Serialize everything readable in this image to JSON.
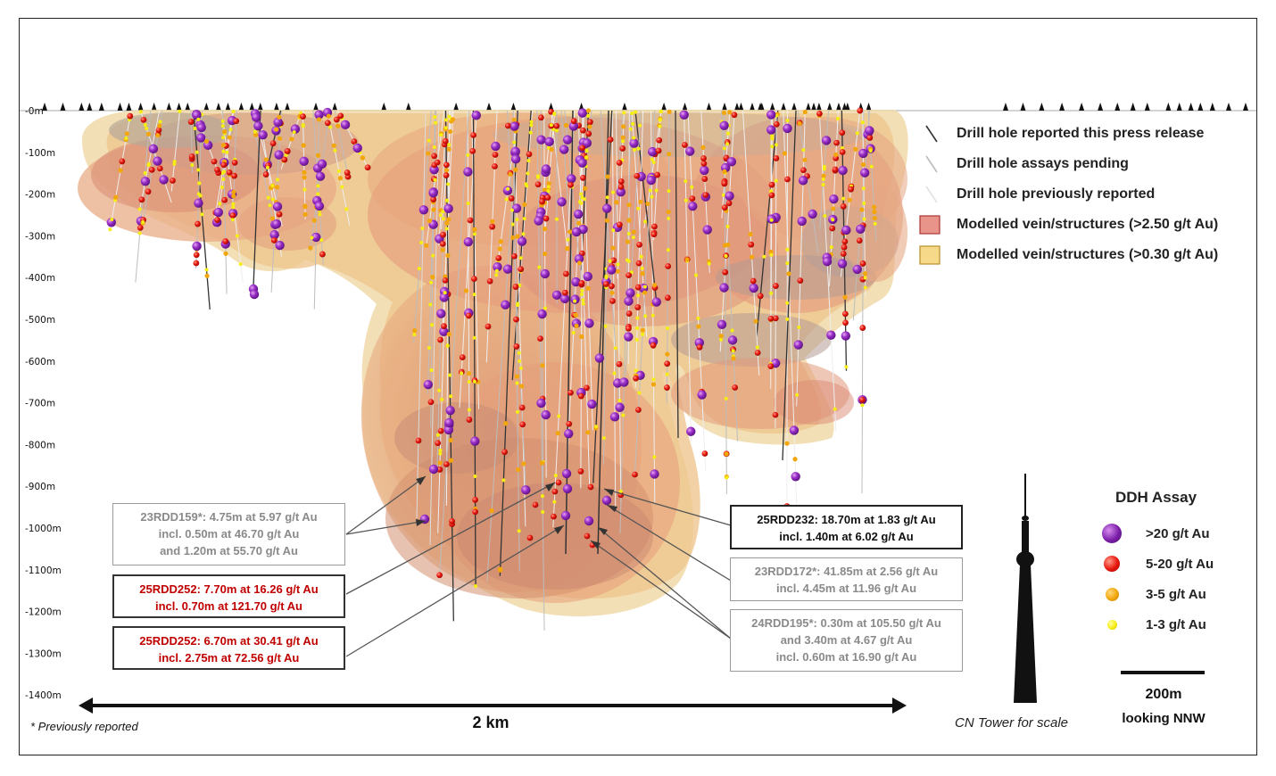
{
  "depth_axis": {
    "labels": [
      "-0m",
      "-100m",
      "-200m",
      "-300m",
      "-400m",
      "-500m",
      "-600m",
      "-700m",
      "-800m",
      "-900m",
      "-1000m",
      "-1100m",
      "-1200m",
      "-1300m",
      "-1400m"
    ]
  },
  "legend": {
    "items": [
      {
        "label": "Drill hole reported this press release",
        "symbol": "line",
        "color": "#333333"
      },
      {
        "label": "Drill hole assays pending",
        "symbol": "line",
        "color": "#bbbbbb"
      },
      {
        "label": "Drill hole previously reported",
        "symbol": "line",
        "color": "#e2e2e2"
      },
      {
        "label": "Modelled vein/structures (>2.50 g/t Au)",
        "symbol": "box",
        "color": "#e8948a"
      },
      {
        "label": "Modelled vein/structures (>0.30 g/t Au)",
        "symbol": "box",
        "color": "#f7d98a"
      }
    ]
  },
  "callouts": [
    {
      "id": "23RDD159",
      "style": "grey",
      "lines": [
        "23RDD159*: 4.75m at 5.97 g/t Au",
        "incl. 0.50m at 46.70 g/t Au",
        "and 1.20m at 55.70 g/t Au"
      ]
    },
    {
      "id": "25RDD252a",
      "style": "red",
      "lines": [
        "25RDD252: 7.70m at 16.26 g/t Au",
        "incl. 0.70m at 121.70 g/t Au"
      ]
    },
    {
      "id": "25RDD252b",
      "style": "red",
      "lines": [
        "25RDD252: 6.70m at 30.41 g/t Au",
        "incl. 2.75m at 72.56 g/t Au"
      ]
    },
    {
      "id": "25RDD232",
      "style": "black",
      "lines": [
        "25RDD232: 18.70m at 1.83 g/t Au",
        "incl. 1.40m at 6.02 g/t Au"
      ]
    },
    {
      "id": "23RDD172",
      "style": "grey",
      "lines": [
        "23RDD172*: 41.85m at 2.56 g/t Au",
        "incl. 4.45m at 11.96 g/t Au"
      ]
    },
    {
      "id": "24RDD195",
      "style": "grey",
      "lines": [
        "24RDD195*: 0.30m at 105.50 g/t Au",
        "and 3.40m at 4.67 g/t Au",
        "incl. 0.60m at 16.90 g/t Au"
      ]
    }
  ],
  "ddh_assay": {
    "title": "DDH Assay",
    "items": [
      {
        "label": ">20 g/t Au",
        "color": "#7a1fa8"
      },
      {
        "label": "5-20 g/t Au",
        "color": "#e8160c"
      },
      {
        "label": "3-5 g/t Au",
        "color": "#f2a60a"
      },
      {
        "label": "1-3 g/t Au",
        "color": "#f6ee10"
      }
    ]
  },
  "scale": {
    "bar_label": "200m",
    "direction": "looking NNW"
  },
  "cn_tower_label": "CN Tower for scale",
  "length_label": "2 km",
  "footnote": "* Previously reported"
}
